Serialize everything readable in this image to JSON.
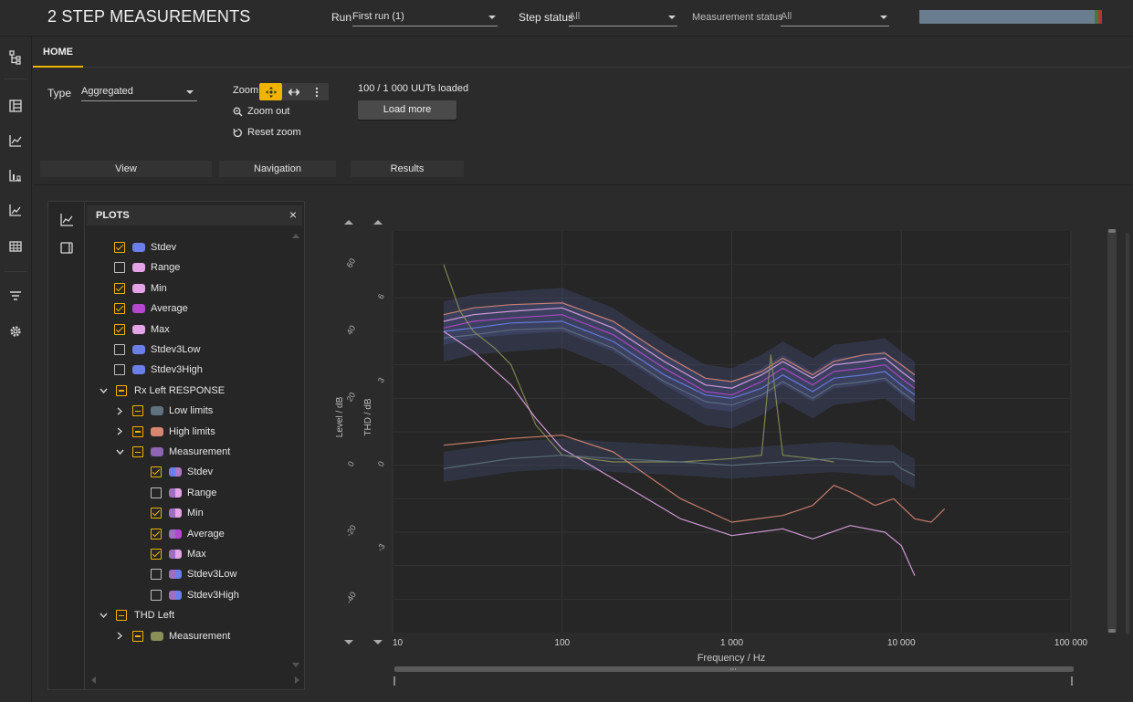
{
  "app": {
    "title": "2 STEP MEASUREMENTS",
    "run_label": "Run",
    "run_value": "First run (1)",
    "step_status_label": "Step status",
    "step_status_value": "All",
    "measurement_status_label": "Measurement status",
    "measurement_status_value": "All",
    "load_progress_fraction": 0.96
  },
  "tabs": [
    {
      "label": "HOME",
      "active": true
    }
  ],
  "ribbon": {
    "type_label": "Type",
    "type_value": "Aggregated",
    "zoom_label": "Zoom",
    "zoom_out_label": "Zoom out",
    "reset_zoom_label": "Reset zoom",
    "loaded_text": "100 / 1 000 UUTs loaded",
    "load_more_label": "Load more",
    "groups": {
      "view": "View",
      "navigation": "Navigation",
      "results": "Results"
    }
  },
  "rail_icons": [
    "tree-icon",
    "dashboard-icon",
    "line-chart-icon",
    "bar-chart-icon",
    "trend-chart-icon",
    "table-icon",
    "filter-icon",
    "settings-icon"
  ],
  "plots_panel": {
    "title": "PLOTS",
    "close_glyph": "×",
    "items": [
      {
        "label": "Stdev",
        "checked": "on",
        "color": "#6a7fe8",
        "level": 1,
        "swatch": "solid"
      },
      {
        "label": "Range",
        "checked": "off",
        "color": "#e3a3e6",
        "level": 1,
        "swatch": "solid"
      },
      {
        "label": "Min",
        "checked": "on",
        "color": "#e3a3e6",
        "level": 1,
        "swatch": "solid"
      },
      {
        "label": "Average",
        "checked": "on",
        "color": "#b648d0",
        "level": 1,
        "swatch": "solid"
      },
      {
        "label": "Max",
        "checked": "on",
        "color": "#e3a3e6",
        "level": 1,
        "swatch": "solid"
      },
      {
        "label": "Stdev3Low",
        "checked": "off",
        "color": "#6a7fe8",
        "level": 1,
        "swatch": "solid"
      },
      {
        "label": "Stdev3High",
        "checked": "off",
        "color": "#6a7fe8",
        "level": 1,
        "swatch": "solid"
      },
      {
        "label": "Rx Left RESPONSE",
        "checked": "part",
        "color": "",
        "level": 0,
        "chevron": "down"
      },
      {
        "label": "Low limits",
        "checked": "part",
        "color": "#5e7280",
        "level": 1,
        "chevron": "right",
        "swatch": "solid"
      },
      {
        "label": "High limits",
        "checked": "part",
        "color": "#d98671",
        "level": 1,
        "chevron": "right",
        "swatch": "solid"
      },
      {
        "label": "Measurement",
        "checked": "part",
        "color": "#8e64b4",
        "level": 1,
        "chevron": "down",
        "swatch": "solid"
      },
      {
        "label": "Stdev",
        "checked": "on",
        "color": "#6a7fe8",
        "color2": "#b076c8",
        "level": 2,
        "swatch": "split"
      },
      {
        "label": "Range",
        "checked": "off",
        "color": "#a070c0",
        "color2": "#e3a3e6",
        "level": 2,
        "swatch": "split"
      },
      {
        "label": "Min",
        "checked": "on",
        "color": "#a070c0",
        "color2": "#e3a3e6",
        "level": 2,
        "swatch": "split"
      },
      {
        "label": "Average",
        "checked": "on",
        "color": "#a070c0",
        "color2": "#b648d0",
        "level": 2,
        "swatch": "split"
      },
      {
        "label": "Max",
        "checked": "on",
        "color": "#a070c0",
        "color2": "#e3a3e6",
        "level": 2,
        "swatch": "split"
      },
      {
        "label": "Stdev3Low",
        "checked": "off",
        "color": "#a070c0",
        "color2": "#6a7fe8",
        "level": 2,
        "swatch": "split"
      },
      {
        "label": "Stdev3High",
        "checked": "off",
        "color": "#a070c0",
        "color2": "#6a7fe8",
        "level": 2,
        "swatch": "split"
      },
      {
        "label": "THD Left",
        "checked": "part",
        "color": "",
        "level": 0,
        "chevron": "down"
      },
      {
        "label": "Measurement",
        "checked": "part",
        "color": "#8a8f56",
        "level": 1,
        "chevron": "right",
        "swatch": "solid"
      }
    ]
  },
  "chart_data": {
    "type": "line",
    "xscale": "log",
    "xlabel": "Frequency / Hz",
    "ylabel_left": "Level / dB",
    "ylabel_right": "THD / dB",
    "xlim": [
      10,
      100000
    ],
    "x_ticks": [
      "10",
      "100",
      "1 000",
      "10 000",
      "100 000"
    ],
    "y_left_ticks": [
      "60",
      "40",
      "20",
      "0",
      "-20",
      "-40"
    ],
    "y_left_lim": [
      -50,
      70
    ],
    "y_right_ticks": [
      "6",
      "3",
      "0",
      "-3"
    ],
    "grid": true,
    "series": [
      {
        "color": "#d98671",
        "x": [
          20,
          30,
          50,
          100,
          200,
          400,
          700,
          1000,
          1500,
          2000,
          3000,
          4000,
          6000,
          8000,
          10000,
          12000
        ],
        "y": [
          45,
          47,
          48,
          48.5,
          43,
          33,
          26,
          25,
          28,
          32,
          27,
          31,
          33,
          33.5,
          30,
          27
        ]
      },
      {
        "color": "#e3a3e6",
        "x": [
          20,
          30,
          50,
          100,
          200,
          400,
          700,
          1000,
          1500,
          2000,
          3000,
          4000,
          6000,
          8000,
          10000,
          12000
        ],
        "y": [
          43,
          45,
          46,
          47,
          41,
          31,
          24,
          23,
          27,
          31,
          26,
          30,
          31,
          32,
          28,
          25
        ]
      },
      {
        "color": "#b648d0",
        "x": [
          20,
          30,
          50,
          100,
          200,
          400,
          700,
          1000,
          1500,
          2000,
          3000,
          4000,
          6000,
          8000,
          10000,
          12000
        ],
        "y": [
          41,
          43,
          44,
          45,
          39,
          29,
          22,
          21,
          25,
          29,
          24,
          28,
          29,
          30,
          26,
          23
        ]
      },
      {
        "color": "#6a7fe8",
        "x": [
          20,
          30,
          50,
          100,
          200,
          400,
          700,
          1000,
          1500,
          2000,
          3000,
          4000,
          6000,
          8000,
          10000,
          12000
        ],
        "y": [
          40,
          41,
          42.5,
          43,
          37,
          27,
          21,
          20,
          23,
          27,
          22,
          26,
          27,
          28,
          24,
          21
        ]
      },
      {
        "color": "#5e7280",
        "x": [
          20,
          30,
          50,
          100,
          200,
          400,
          700,
          1000,
          1500,
          2000,
          3000,
          4000,
          6000,
          8000,
          10000,
          12000
        ],
        "y": [
          38,
          39,
          40.5,
          41,
          35,
          25,
          19,
          18,
          21,
          25,
          20,
          24,
          25,
          26,
          22,
          19
        ]
      },
      {
        "color": "#8a8f56",
        "x": [
          20,
          25,
          30,
          40,
          50,
          70,
          100,
          200,
          500,
          1000,
          1500,
          1700,
          2000,
          3000,
          4000
        ],
        "y": [
          60,
          46,
          40,
          35,
          30,
          12,
          3,
          1,
          1,
          2,
          3,
          33,
          3,
          2,
          1
        ]
      },
      {
        "color": "#e3a3e6",
        "x": [
          20,
          30,
          50,
          70,
          100,
          200,
          500,
          1000,
          2000,
          3000,
          5000,
          8000,
          10000,
          12000
        ],
        "y": [
          40,
          34,
          24,
          14,
          5,
          -4,
          -16,
          -21,
          -19,
          -22,
          -18,
          -20,
          -24,
          -33
        ]
      },
      {
        "color": "#d98671",
        "x": [
          20,
          50,
          100,
          200,
          500,
          1000,
          2000,
          3000,
          4000,
          5000,
          7000,
          9000,
          12000,
          15000,
          18000
        ],
        "y": [
          6,
          8,
          9,
          4,
          -10,
          -17,
          -15,
          -12,
          -6,
          -8,
          -12,
          -10,
          -16,
          -17,
          -13
        ]
      },
      {
        "color": "#5e7280",
        "x": [
          20,
          50,
          100,
          200,
          500,
          1000,
          2000,
          4000,
          7000,
          9000,
          10000,
          12000
        ],
        "y": [
          -1,
          2,
          3,
          2,
          1,
          0,
          1,
          2,
          1,
          1,
          -1,
          -3
        ]
      }
    ]
  }
}
